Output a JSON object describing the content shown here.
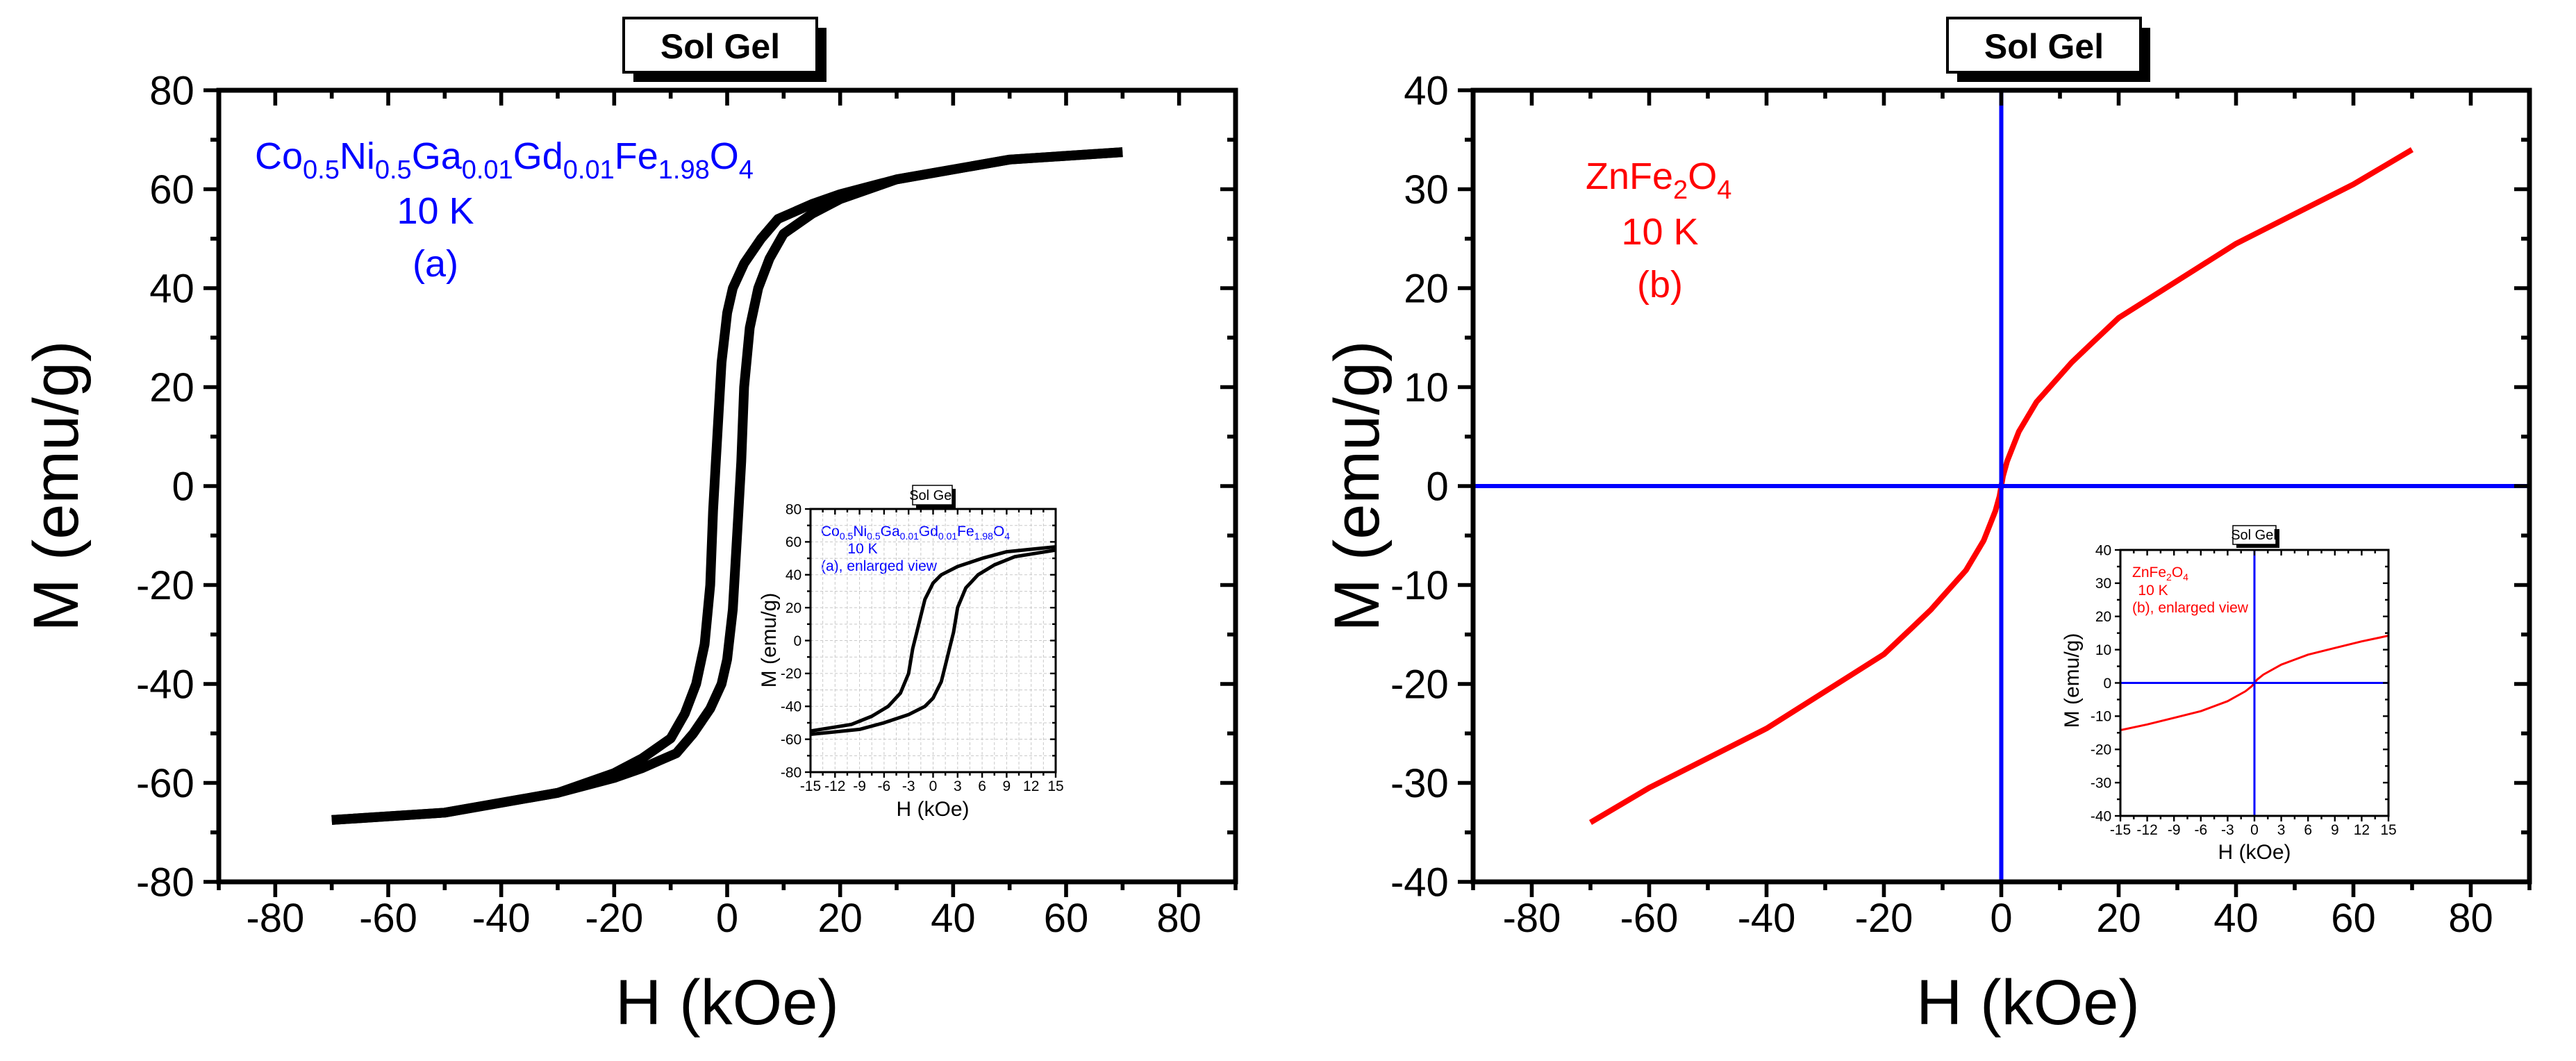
{
  "chart_data": [
    {
      "id": "a_main",
      "type": "line",
      "title": "Sol Gel",
      "xlabel": "H (kOe)",
      "ylabel": "M (emu/g)",
      "xlim": [
        -90,
        90
      ],
      "ylim": [
        -80,
        80
      ],
      "xticks": [
        -80,
        -60,
        -40,
        -20,
        0,
        20,
        40,
        60,
        80
      ],
      "yticks": [
        -80,
        -60,
        -40,
        -20,
        0,
        20,
        40,
        60,
        80
      ],
      "grid": false,
      "annotation": {
        "formula_parts": [
          "Co",
          "0.5",
          "Ni",
          "0.5",
          "Ga",
          "0.01",
          "Gd",
          "0.01",
          "Fe",
          "1.98",
          "O",
          "4"
        ],
        "temperature": "10 K",
        "panel": "(a)"
      },
      "color": "#000000",
      "series": [
        {
          "name": "descending branch",
          "x": [
            70,
            50,
            30,
            20,
            15,
            12,
            9,
            6,
            3,
            1,
            0,
            -0.3,
            -1,
            -1.5,
            -2,
            -2.5,
            -3,
            -4,
            -5.5,
            -7.5,
            -10,
            -15,
            -20,
            -30,
            -50,
            -70
          ],
          "y": [
            67.5,
            66,
            62,
            59,
            57,
            55.5,
            54,
            50,
            45,
            40,
            35,
            32,
            25,
            15,
            5,
            -5,
            -20,
            -32,
            -40,
            -46,
            -51,
            -55,
            -58,
            -62,
            -66,
            -67.5
          ]
        },
        {
          "name": "ascending branch",
          "x": [
            -70,
            -50,
            -30,
            -20,
            -15,
            -12,
            -9,
            -6,
            -3,
            -1,
            0,
            0.3,
            1,
            1.5,
            2,
            2.5,
            3,
            4,
            5.5,
            7.5,
            10,
            15,
            20,
            30,
            50,
            70
          ],
          "y": [
            -67.5,
            -66,
            -62,
            -59,
            -57,
            -55.5,
            -54,
            -50,
            -45,
            -40,
            -35,
            -32,
            -25,
            -15,
            -5,
            5,
            20,
            32,
            40,
            46,
            51,
            55,
            58,
            62,
            66,
            67.5
          ]
        }
      ]
    },
    {
      "id": "a_inset",
      "type": "line",
      "title": "Sol Gel",
      "xlabel": "H (kOe)",
      "ylabel": "M (emu/g)",
      "xlim": [
        -15,
        15
      ],
      "ylim": [
        -80,
        80
      ],
      "xticks": [
        -15,
        -12,
        -9,
        -6,
        -3,
        0,
        3,
        6,
        9,
        12,
        15
      ],
      "yticks": [
        -80,
        -60,
        -40,
        -20,
        0,
        20,
        40,
        60,
        80
      ],
      "grid": true,
      "annotation": {
        "formula_parts": [
          "Co",
          "0.5",
          "Ni",
          "0.5",
          "Ga",
          "0.01",
          "Gd",
          "0.01",
          "Fe",
          "1.98",
          "O",
          "4"
        ],
        "temperature": "10 K",
        "panel": "(a), enlarged view"
      },
      "color": "#000000",
      "series_ref": "a_main"
    },
    {
      "id": "b_main",
      "type": "line",
      "title": "Sol Gel",
      "xlabel": "H (kOe)",
      "ylabel": "M (emu/g)",
      "xlim": [
        -90,
        90
      ],
      "ylim": [
        -40,
        40
      ],
      "xticks": [
        -80,
        -60,
        -40,
        -20,
        0,
        20,
        40,
        60,
        80
      ],
      "yticks": [
        -40,
        -30,
        -20,
        -10,
        0,
        10,
        20,
        30,
        40
      ],
      "grid": false,
      "zero_lines_color": "#0000FF",
      "annotation": {
        "formula_parts": [
          "ZnFe",
          "2",
          "O",
          "4"
        ],
        "temperature": "10 K",
        "panel": "(b)"
      },
      "color": "#FF0000",
      "series": [
        {
          "name": "ZnFe2O4",
          "x": [
            -70,
            -60,
            -40,
            -20,
            -15,
            -12,
            -9,
            -6,
            -3,
            -1,
            -0.3,
            0,
            0.3,
            1,
            3,
            6,
            9,
            12,
            15,
            20,
            40,
            60,
            70
          ],
          "y": [
            -34,
            -30.5,
            -24.5,
            -17,
            -14.2,
            -12.5,
            -10.5,
            -8.5,
            -5.5,
            -2.5,
            -1,
            0,
            1,
            2.5,
            5.5,
            8.5,
            10.5,
            12.5,
            14.2,
            17,
            24.5,
            30.5,
            34
          ]
        }
      ]
    },
    {
      "id": "b_inset",
      "type": "line",
      "title": "Sol Gel",
      "xlabel": "H (kOe)",
      "ylabel": "M (emu/g)",
      "xlim": [
        -15,
        15
      ],
      "ylim": [
        -40,
        40
      ],
      "xticks": [
        -15,
        -12,
        -9,
        -6,
        -3,
        0,
        3,
        6,
        9,
        12,
        15
      ],
      "yticks": [
        -40,
        -30,
        -20,
        -10,
        0,
        10,
        20,
        30,
        40
      ],
      "grid": false,
      "zero_lines_color": "#0000FF",
      "annotation": {
        "formula_parts": [
          "ZnFe",
          "2",
          "O",
          "4"
        ],
        "temperature": "10 K",
        "panel": "(b), enlarged view"
      },
      "color": "#FF0000",
      "series_ref": "b_main"
    }
  ],
  "colors": {
    "annotation_a": "#0000FF",
    "annotation_b": "#FF0000",
    "axes": "#000000"
  }
}
